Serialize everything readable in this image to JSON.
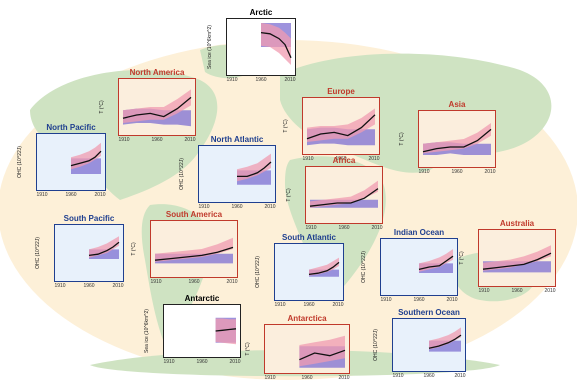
{
  "colors": {
    "ocean_bg": "#fdf0d8",
    "land": "#cfe3c2",
    "land_panel_bg": "#fbeedd",
    "ocean_panel_bg": "#e8f1fb",
    "land_border": "#c0392b",
    "ocean_border": "#1f3f8f",
    "observed": "#111111",
    "natural_band": "#7d6fd1",
    "anthro_band": "#f09bb0",
    "land_title": "#c0392b",
    "ocean_title": "#1f3f8f",
    "global_title": "#000000"
  },
  "chart_data": [
    {
      "type": "line",
      "title": "Arctic",
      "kind": "global",
      "ylabel": "Sea ice (10^6km^2)",
      "x_ticks": [
        "1910",
        "1960",
        "2010"
      ],
      "xlim": [
        1910,
        2010
      ],
      "ylim": [
        -3,
        1
      ],
      "x": [
        1960,
        1975,
        1990,
        2000,
        2010
      ],
      "observed": [
        0.2,
        0.1,
        -0.3,
        -0.8,
        -1.9
      ],
      "natural": {
        "lo": [
          -1.0,
          -1.0,
          -1.0,
          -1.0,
          -1.0
        ],
        "hi": [
          1.0,
          1.0,
          1.0,
          1.0,
          1.0
        ]
      },
      "anthro": {
        "lo": [
          -0.9,
          -1.0,
          -1.5,
          -2.0,
          -2.5
        ],
        "hi": [
          1.0,
          0.9,
          0.6,
          0.2,
          -0.3
        ]
      }
    },
    {
      "type": "line",
      "title": "North America",
      "kind": "land",
      "ylabel": "T (°C)",
      "x_ticks": [
        "1910",
        "1960",
        "2010"
      ],
      "xlim": [
        1910,
        2010
      ],
      "ylim": [
        -1,
        2
      ],
      "x": [
        1910,
        1930,
        1950,
        1970,
        1990,
        2010
      ],
      "observed": [
        -0.2,
        0.0,
        0.1,
        -0.1,
        0.4,
        1.1
      ],
      "natural": {
        "lo": [
          -0.6,
          -0.5,
          -0.5,
          -0.6,
          -0.6,
          -0.7
        ],
        "hi": [
          0.3,
          0.4,
          0.4,
          0.3,
          0.3,
          0.3
        ]
      },
      "anthro": {
        "lo": [
          -0.5,
          -0.4,
          -0.3,
          -0.3,
          0.1,
          0.6
        ],
        "hi": [
          0.3,
          0.4,
          0.5,
          0.5,
          1.0,
          1.6
        ]
      }
    },
    {
      "type": "line",
      "title": "Europe",
      "kind": "land",
      "ylabel": "T (°C)",
      "x_ticks": [
        "1910",
        "1960",
        "2010"
      ],
      "xlim": [
        1910,
        2010
      ],
      "ylim": [
        -1,
        2
      ],
      "x": [
        1910,
        1930,
        1950,
        1970,
        1990,
        2010
      ],
      "observed": [
        -0.3,
        0.0,
        0.1,
        -0.1,
        0.4,
        1.2
      ],
      "natural": {
        "lo": [
          -0.7,
          -0.6,
          -0.6,
          -0.7,
          -0.7,
          -0.7
        ],
        "hi": [
          0.3,
          0.4,
          0.4,
          0.3,
          0.3,
          0.3
        ]
      },
      "anthro": {
        "lo": [
          -0.5,
          -0.4,
          -0.3,
          -0.3,
          0.1,
          0.6
        ],
        "hi": [
          0.4,
          0.5,
          0.5,
          0.6,
          1.0,
          1.6
        ]
      }
    },
    {
      "type": "line",
      "title": "Asia",
      "kind": "land",
      "ylabel": "T (°C)",
      "x_ticks": [
        "1910",
        "1960",
        "2010"
      ],
      "xlim": [
        1910,
        2010
      ],
      "ylim": [
        -1,
        2
      ],
      "x": [
        1910,
        1930,
        1950,
        1970,
        1990,
        2010
      ],
      "observed": [
        -0.3,
        -0.1,
        0.0,
        0.0,
        0.4,
        1.1
      ],
      "natural": {
        "lo": [
          -0.5,
          -0.5,
          -0.4,
          -0.5,
          -0.5,
          -0.5
        ],
        "hi": [
          0.2,
          0.3,
          0.3,
          0.2,
          0.2,
          0.2
        ]
      },
      "anthro": {
        "lo": [
          -0.4,
          -0.3,
          -0.2,
          -0.1,
          0.2,
          0.7
        ],
        "hi": [
          0.2,
          0.3,
          0.4,
          0.5,
          0.9,
          1.5
        ]
      }
    },
    {
      "type": "line",
      "title": "North Pacific",
      "kind": "ocean",
      "ylabel": "OHC (10^22J)",
      "x_ticks": [
        "1910",
        "1960",
        "2010"
      ],
      "xlim": [
        1910,
        2010
      ],
      "ylim": [
        -2,
        2
      ],
      "x": [
        1960,
        1975,
        1990,
        2000,
        2010
      ],
      "observed": [
        -0.3,
        -0.1,
        0.1,
        0.4,
        0.9
      ],
      "natural": {
        "lo": [
          -1.0,
          -1.0,
          -1.0,
          -1.0,
          -1.0
        ],
        "hi": [
          0.3,
          0.3,
          0.3,
          0.3,
          0.3
        ]
      },
      "anthro": {
        "lo": [
          -0.6,
          -0.4,
          -0.1,
          0.2,
          0.5
        ],
        "hi": [
          0.4,
          0.6,
          0.9,
          1.2,
          1.6
        ]
      }
    },
    {
      "type": "line",
      "title": "North Atlantic",
      "kind": "ocean",
      "ylabel": "OHC (10^22J)",
      "x_ticks": [
        "1910",
        "1960",
        "2010"
      ],
      "xlim": [
        1910,
        2010
      ],
      "ylim": [
        -2,
        2
      ],
      "x": [
        1960,
        1975,
        1990,
        2000,
        2010
      ],
      "observed": [
        -0.2,
        -0.2,
        0.1,
        0.5,
        1.0
      ],
      "natural": {
        "lo": [
          -0.9,
          -0.9,
          -0.9,
          -0.9,
          -0.9
        ],
        "hi": [
          0.3,
          0.3,
          0.3,
          0.3,
          0.3
        ]
      },
      "anthro": {
        "lo": [
          -0.6,
          -0.4,
          -0.1,
          0.2,
          0.5
        ],
        "hi": [
          0.4,
          0.6,
          0.9,
          1.3,
          1.7
        ]
      }
    },
    {
      "type": "line",
      "title": "Africa",
      "kind": "land",
      "ylabel": "T (°C)",
      "x_ticks": [
        "1910",
        "1960",
        "2010"
      ],
      "xlim": [
        1910,
        2010
      ],
      "ylim": [
        -1,
        2
      ],
      "x": [
        1910,
        1930,
        1950,
        1970,
        1990,
        2010
      ],
      "observed": [
        -0.2,
        -0.1,
        0.0,
        0.0,
        0.3,
        0.9
      ],
      "natural": {
        "lo": [
          -0.3,
          -0.3,
          -0.3,
          -0.3,
          -0.3,
          -0.3
        ],
        "hi": [
          0.2,
          0.2,
          0.2,
          0.2,
          0.2,
          0.2
        ]
      },
      "anthro": {
        "lo": [
          -0.3,
          -0.2,
          -0.1,
          0.0,
          0.3,
          0.7
        ],
        "hi": [
          0.1,
          0.2,
          0.3,
          0.4,
          0.8,
          1.4
        ]
      }
    },
    {
      "type": "line",
      "title": "South Pacific",
      "kind": "ocean",
      "ylabel": "OHC (10^22J)",
      "x_ticks": [
        "1910",
        "1960",
        "2010"
      ],
      "xlim": [
        1910,
        2010
      ],
      "ylim": [
        -2,
        2
      ],
      "x": [
        1960,
        1975,
        1990,
        2000,
        2010
      ],
      "observed": [
        -0.2,
        -0.1,
        0.2,
        0.5,
        0.9
      ],
      "natural": {
        "lo": [
          -0.5,
          -0.5,
          -0.5,
          -0.5,
          -0.5
        ],
        "hi": [
          0.3,
          0.3,
          0.3,
          0.3,
          0.3
        ]
      },
      "anthro": {
        "lo": [
          -0.4,
          -0.2,
          0.0,
          0.3,
          0.6
        ],
        "hi": [
          0.3,
          0.5,
          0.8,
          1.1,
          1.4
        ]
      }
    },
    {
      "type": "line",
      "title": "South America",
      "kind": "land",
      "ylabel": "T (°C)",
      "x_ticks": [
        "1910",
        "1960",
        "2010"
      ],
      "xlim": [
        1910,
        2010
      ],
      "ylim": [
        -1,
        2
      ],
      "x": [
        1910,
        1930,
        1950,
        1970,
        1990,
        2010
      ],
      "observed": [
        -0.2,
        -0.1,
        0.0,
        0.1,
        0.3,
        0.6
      ],
      "natural": {
        "lo": [
          -0.4,
          -0.4,
          -0.4,
          -0.4,
          -0.4,
          -0.4
        ],
        "hi": [
          0.2,
          0.2,
          0.2,
          0.2,
          0.2,
          0.2
        ]
      },
      "anthro": {
        "lo": [
          -0.3,
          -0.2,
          -0.1,
          0.0,
          0.2,
          0.5
        ],
        "hi": [
          0.2,
          0.3,
          0.4,
          0.5,
          0.8,
          1.2
        ]
      }
    },
    {
      "type": "line",
      "title": "South Atlantic",
      "kind": "ocean",
      "ylabel": "OHC (10^22J)",
      "x_ticks": [
        "1910",
        "1960",
        "2010"
      ],
      "xlim": [
        1910,
        2010
      ],
      "ylim": [
        -2,
        2
      ],
      "x": [
        1960,
        1975,
        1990,
        2000,
        2010
      ],
      "observed": [
        -0.2,
        -0.1,
        0.1,
        0.4,
        0.8
      ],
      "natural": {
        "lo": [
          -0.4,
          -0.4,
          -0.4,
          -0.4,
          -0.4
        ],
        "hi": [
          0.2,
          0.2,
          0.2,
          0.2,
          0.2
        ]
      },
      "anthro": {
        "lo": [
          -0.3,
          -0.2,
          0.0,
          0.2,
          0.5
        ],
        "hi": [
          0.2,
          0.4,
          0.6,
          0.9,
          1.2
        ]
      }
    },
    {
      "type": "line",
      "title": "Indian Ocean",
      "kind": "ocean",
      "ylabel": "OHC (10^22J)",
      "x_ticks": [
        "1910",
        "1960",
        "2010"
      ],
      "xlim": [
        1910,
        2010
      ],
      "ylim": [
        -2,
        2
      ],
      "x": [
        1960,
        1975,
        1990,
        2000,
        2010
      ],
      "observed": [
        -0.2,
        0.0,
        0.1,
        0.5,
        0.9
      ],
      "natural": {
        "lo": [
          -0.5,
          -0.5,
          -0.5,
          -0.5,
          -0.5
        ],
        "hi": [
          0.3,
          0.3,
          0.3,
          0.3,
          0.3
        ]
      },
      "anthro": {
        "lo": [
          -0.4,
          -0.2,
          0.0,
          0.3,
          0.6
        ],
        "hi": [
          0.3,
          0.5,
          0.8,
          1.1,
          1.5
        ]
      }
    },
    {
      "type": "line",
      "title": "Australia",
      "kind": "land",
      "ylabel": "T (°C)",
      "x_ticks": [
        "1910",
        "1960",
        "2010"
      ],
      "xlim": [
        1910,
        2010
      ],
      "ylim": [
        -1,
        2
      ],
      "x": [
        1910,
        1930,
        1950,
        1970,
        1990,
        2010
      ],
      "observed": [
        -0.2,
        -0.1,
        0.0,
        0.1,
        0.4,
        0.8
      ],
      "natural": {
        "lo": [
          -0.4,
          -0.4,
          -0.4,
          -0.4,
          -0.4,
          -0.4
        ],
        "hi": [
          0.3,
          0.3,
          0.3,
          0.3,
          0.3,
          0.3
        ]
      },
      "anthro": {
        "lo": [
          -0.3,
          -0.2,
          -0.1,
          0.1,
          0.3,
          0.6
        ],
        "hi": [
          0.2,
          0.3,
          0.4,
          0.6,
          0.9,
          1.3
        ]
      }
    },
    {
      "type": "line",
      "title": "Antarctic",
      "kind": "global",
      "ylabel": "Sea ice (10^6km^2)",
      "x_ticks": [
        "1910",
        "1960",
        "2010"
      ],
      "xlim": [
        1910,
        2010
      ],
      "ylim": [
        -3,
        3
      ],
      "x": [
        1980,
        1990,
        2000,
        2010
      ],
      "observed": [
        0.0,
        0.1,
        0.2,
        0.3
      ],
      "natural": {
        "lo": [
          -1.6,
          -1.6,
          -1.6,
          -1.6
        ],
        "hi": [
          1.8,
          1.8,
          1.8,
          1.8
        ]
      },
      "anthro": {
        "lo": [
          -1.5,
          -1.6,
          -1.7,
          -1.8
        ],
        "hi": [
          1.7,
          1.7,
          1.6,
          1.6
        ]
      }
    },
    {
      "type": "line",
      "title": "Antarctica",
      "kind": "land",
      "ylabel": "T (°C)",
      "x_ticks": [
        "1910",
        "1960",
        "2010"
      ],
      "xlim": [
        1910,
        2010
      ],
      "ylim": [
        -1,
        2
      ],
      "x": [
        1950,
        1970,
        1990,
        2010
      ],
      "observed": [
        -0.3,
        0.2,
        0.0,
        0.4
      ],
      "natural": {
        "lo": [
          -0.9,
          -0.9,
          -0.9,
          -0.9
        ],
        "hi": [
          0.7,
          0.7,
          0.7,
          0.7
        ]
      },
      "anthro": {
        "lo": [
          -0.8,
          -0.6,
          -0.4,
          -0.2
        ],
        "hi": [
          0.8,
          1.0,
          1.2,
          1.5
        ]
      }
    },
    {
      "type": "line",
      "title": "Southern Ocean",
      "kind": "ocean",
      "ylabel": "OHC (10^22J)",
      "x_ticks": [
        "1910",
        "1960",
        "2010"
      ],
      "xlim": [
        1910,
        2010
      ],
      "ylim": [
        -2,
        2
      ],
      "x": [
        1960,
        1975,
        1990,
        2000,
        2010
      ],
      "observed": [
        -0.3,
        -0.1,
        0.2,
        0.5,
        0.9
      ],
      "natural": {
        "lo": [
          -0.6,
          -0.6,
          -0.6,
          -0.6,
          -0.6
        ],
        "hi": [
          0.4,
          0.4,
          0.4,
          0.4,
          0.4
        ]
      },
      "anthro": {
        "lo": [
          -0.4,
          -0.2,
          0.1,
          0.4,
          0.7
        ],
        "hi": [
          0.4,
          0.6,
          0.9,
          1.2,
          1.6
        ]
      }
    }
  ]
}
